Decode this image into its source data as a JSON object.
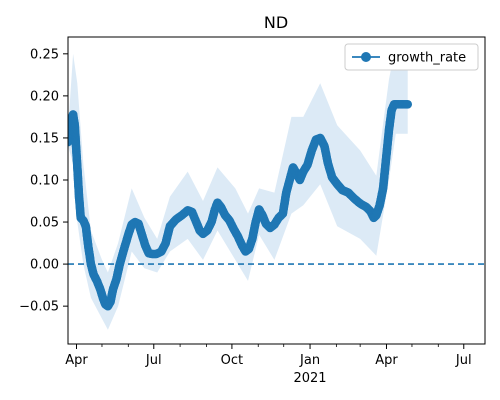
{
  "chart_data": {
    "type": "line",
    "title": "ND",
    "xlabel": "",
    "ylabel": "",
    "x_range": [
      "2020-03-22",
      "2021-07-26"
    ],
    "ylim": [
      -0.095,
      0.27
    ],
    "x_ticks": [
      {
        "date": "2020-04-01",
        "label": "Apr"
      },
      {
        "date": "2020-07-01",
        "label": "Jul"
      },
      {
        "date": "2020-10-01",
        "label": "Oct"
      },
      {
        "date": "2021-01-01",
        "label": "Jan",
        "sublabel": "2021"
      },
      {
        "date": "2021-04-01",
        "label": "Apr"
      },
      {
        "date": "2021-07-01",
        "label": "Jul"
      }
    ],
    "y_ticks": [
      -0.05,
      0.0,
      0.05,
      0.1,
      0.15,
      0.2,
      0.25
    ],
    "y_tick_labels": [
      "−0.05",
      "0.00",
      "0.05",
      "0.10",
      "0.15",
      "0.20",
      "0.25"
    ],
    "reference_line": {
      "y": 0.0,
      "style": "dashed"
    },
    "legend": {
      "position": "top-right"
    },
    "colors": {
      "series": "#1f77b4",
      "band": "#d6e6f5"
    },
    "series": [
      {
        "name": "growth_rate",
        "marker": "circle",
        "points": [
          [
            "2020-03-22",
            0.145
          ],
          [
            "2020-03-25",
            0.165
          ],
          [
            "2020-03-28",
            0.178
          ],
          [
            "2020-03-30",
            0.165
          ],
          [
            "2020-04-02",
            0.115
          ],
          [
            "2020-04-04",
            0.08
          ],
          [
            "2020-04-06",
            0.055
          ],
          [
            "2020-04-09",
            0.052
          ],
          [
            "2020-04-12",
            0.045
          ],
          [
            "2020-04-15",
            0.02
          ],
          [
            "2020-04-18",
            0.0
          ],
          [
            "2020-04-21",
            -0.012
          ],
          [
            "2020-04-25",
            -0.02
          ],
          [
            "2020-04-29",
            -0.03
          ],
          [
            "2020-05-02",
            -0.04
          ],
          [
            "2020-05-05",
            -0.048
          ],
          [
            "2020-05-08",
            -0.05
          ],
          [
            "2020-05-11",
            -0.045
          ],
          [
            "2020-05-14",
            -0.03
          ],
          [
            "2020-05-18",
            -0.018
          ],
          [
            "2020-05-22",
            0.0
          ],
          [
            "2020-05-27",
            0.018
          ],
          [
            "2020-06-01",
            0.035
          ],
          [
            "2020-06-05",
            0.047
          ],
          [
            "2020-06-09",
            0.05
          ],
          [
            "2020-06-13",
            0.048
          ],
          [
            "2020-06-17",
            0.035
          ],
          [
            "2020-06-21",
            0.022
          ],
          [
            "2020-06-25",
            0.013
          ],
          [
            "2020-06-29",
            0.012
          ],
          [
            "2020-07-04",
            0.012
          ],
          [
            "2020-07-10",
            0.015
          ],
          [
            "2020-07-15",
            0.025
          ],
          [
            "2020-07-20",
            0.045
          ],
          [
            "2020-07-27",
            0.053
          ],
          [
            "2020-08-03",
            0.058
          ],
          [
            "2020-08-10",
            0.064
          ],
          [
            "2020-08-15",
            0.062
          ],
          [
            "2020-08-20",
            0.05
          ],
          [
            "2020-08-24",
            0.04
          ],
          [
            "2020-08-28",
            0.036
          ],
          [
            "2020-09-02",
            0.04
          ],
          [
            "2020-09-07",
            0.05
          ],
          [
            "2020-09-11",
            0.065
          ],
          [
            "2020-09-14",
            0.073
          ],
          [
            "2020-09-18",
            0.068
          ],
          [
            "2020-09-23",
            0.058
          ],
          [
            "2020-09-28",
            0.052
          ],
          [
            "2020-10-03",
            0.042
          ],
          [
            "2020-10-08",
            0.033
          ],
          [
            "2020-10-13",
            0.022
          ],
          [
            "2020-10-17",
            0.015
          ],
          [
            "2020-10-21",
            0.018
          ],
          [
            "2020-10-25",
            0.03
          ],
          [
            "2020-10-29",
            0.05
          ],
          [
            "2020-11-02",
            0.065
          ],
          [
            "2020-11-06",
            0.058
          ],
          [
            "2020-11-10",
            0.048
          ],
          [
            "2020-11-15",
            0.043
          ],
          [
            "2020-11-20",
            0.047
          ],
          [
            "2020-11-25",
            0.055
          ],
          [
            "2020-11-30",
            0.06
          ],
          [
            "2020-12-04",
            0.085
          ],
          [
            "2020-12-08",
            0.1
          ],
          [
            "2020-12-12",
            0.115
          ],
          [
            "2020-12-16",
            0.108
          ],
          [
            "2020-12-20",
            0.1
          ],
          [
            "2020-12-24",
            0.11
          ],
          [
            "2020-12-29",
            0.118
          ],
          [
            "2021-01-03",
            0.135
          ],
          [
            "2021-01-08",
            0.148
          ],
          [
            "2021-01-13",
            0.15
          ],
          [
            "2021-01-18",
            0.14
          ],
          [
            "2021-01-22",
            0.12
          ],
          [
            "2021-01-27",
            0.103
          ],
          [
            "2021-02-02",
            0.095
          ],
          [
            "2021-02-08",
            0.088
          ],
          [
            "2021-02-15",
            0.085
          ],
          [
            "2021-02-22",
            0.078
          ],
          [
            "2021-03-01",
            0.072
          ],
          [
            "2021-03-08",
            0.068
          ],
          [
            "2021-03-13",
            0.063
          ],
          [
            "2021-03-17",
            0.055
          ],
          [
            "2021-03-20",
            0.058
          ],
          [
            "2021-03-24",
            0.07
          ],
          [
            "2021-03-28",
            0.09
          ],
          [
            "2021-04-01",
            0.13
          ],
          [
            "2021-04-04",
            0.16
          ],
          [
            "2021-04-07",
            0.183
          ],
          [
            "2021-04-10",
            0.19
          ],
          [
            "2021-04-14",
            0.19
          ],
          [
            "2021-04-20",
            0.19
          ],
          [
            "2021-04-26",
            0.19
          ]
        ],
        "band_upper": [
          [
            "2020-03-22",
            0.16
          ],
          [
            "2020-03-28",
            0.25
          ],
          [
            "2020-04-02",
            0.215
          ],
          [
            "2020-04-09",
            0.12
          ],
          [
            "2020-04-18",
            0.04
          ],
          [
            "2020-05-01",
            0.005
          ],
          [
            "2020-05-08",
            -0.01
          ],
          [
            "2020-05-20",
            0.025
          ],
          [
            "2020-06-05",
            0.09
          ],
          [
            "2020-06-20",
            0.055
          ],
          [
            "2020-07-05",
            0.03
          ],
          [
            "2020-07-20",
            0.08
          ],
          [
            "2020-08-10",
            0.11
          ],
          [
            "2020-08-28",
            0.075
          ],
          [
            "2020-09-14",
            0.115
          ],
          [
            "2020-10-05",
            0.09
          ],
          [
            "2020-10-20",
            0.06
          ],
          [
            "2020-11-02",
            0.09
          ],
          [
            "2020-11-20",
            0.085
          ],
          [
            "2020-12-10",
            0.175
          ],
          [
            "2020-12-24",
            0.175
          ],
          [
            "2021-01-13",
            0.215
          ],
          [
            "2021-02-02",
            0.165
          ],
          [
            "2021-03-01",
            0.135
          ],
          [
            "2021-03-20",
            0.105
          ],
          [
            "2021-04-04",
            0.22
          ],
          [
            "2021-04-12",
            0.26
          ],
          [
            "2021-04-26",
            0.26
          ]
        ],
        "band_lower": [
          [
            "2020-03-22",
            0.14
          ],
          [
            "2020-03-28",
            0.12
          ],
          [
            "2020-04-02",
            0.05
          ],
          [
            "2020-04-09",
            0.0
          ],
          [
            "2020-04-18",
            -0.04
          ],
          [
            "2020-05-01",
            -0.065
          ],
          [
            "2020-05-08",
            -0.078
          ],
          [
            "2020-05-20",
            -0.05
          ],
          [
            "2020-06-05",
            0.015
          ],
          [
            "2020-06-20",
            -0.005
          ],
          [
            "2020-07-05",
            -0.01
          ],
          [
            "2020-07-20",
            0.015
          ],
          [
            "2020-08-10",
            0.03
          ],
          [
            "2020-08-28",
            0.005
          ],
          [
            "2020-09-14",
            0.04
          ],
          [
            "2020-10-05",
            0.005
          ],
          [
            "2020-10-20",
            -0.02
          ],
          [
            "2020-11-02",
            0.035
          ],
          [
            "2020-11-20",
            0.005
          ],
          [
            "2020-12-10",
            0.06
          ],
          [
            "2020-12-24",
            0.07
          ],
          [
            "2021-01-13",
            0.095
          ],
          [
            "2021-02-02",
            0.045
          ],
          [
            "2021-03-01",
            0.03
          ],
          [
            "2021-03-20",
            0.01
          ],
          [
            "2021-04-04",
            0.1
          ],
          [
            "2021-04-12",
            0.155
          ],
          [
            "2021-04-26",
            0.155
          ]
        ]
      }
    ]
  }
}
